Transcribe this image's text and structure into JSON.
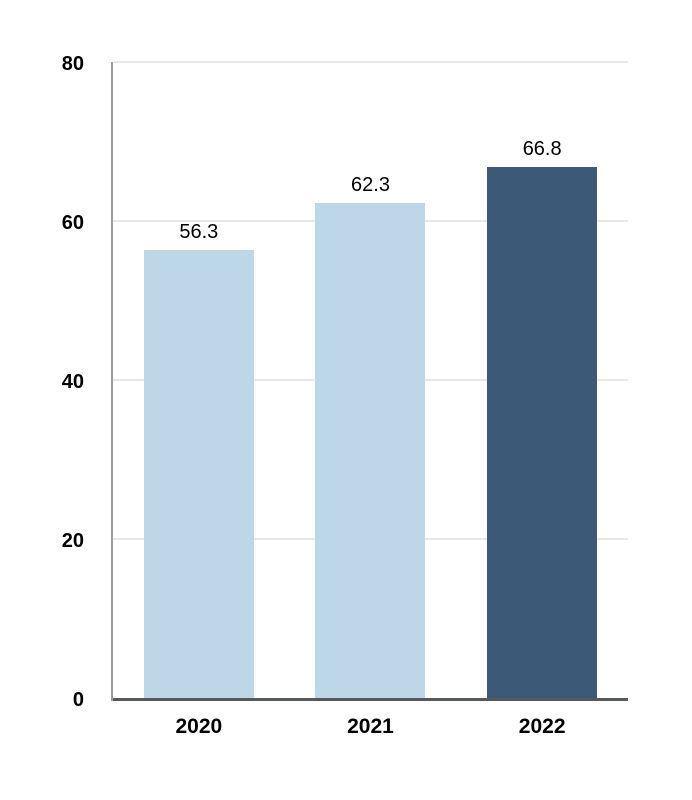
{
  "chart_data": {
    "type": "bar",
    "categories": [
      "2020",
      "2021",
      "2022"
    ],
    "values": [
      56.3,
      62.3,
      66.8
    ],
    "value_labels": [
      "56.3",
      "62.3",
      "66.8"
    ],
    "bar_colors": [
      "#BDD7E9",
      "#BDD7E9",
      "#3C5A78"
    ],
    "title": "",
    "xlabel": "",
    "ylabel": "",
    "ylim": [
      0,
      80
    ],
    "yticks": [
      0,
      20,
      40,
      60,
      80
    ],
    "grid": true,
    "legend": false,
    "colors": {
      "gridline": "#E8E8E8",
      "baseline_axis": "#58595B",
      "y_axis_line": "#9B9B9D",
      "label_text": "#000000",
      "background": "#FFFFFF"
    }
  }
}
